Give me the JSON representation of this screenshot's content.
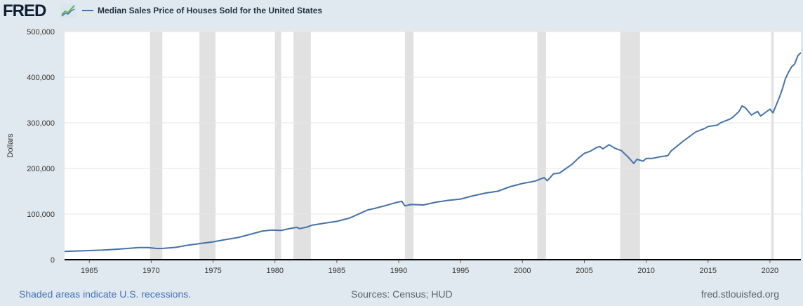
{
  "header": {
    "logo_text": "FRED",
    "logo_icon": "fred-chart-icon"
  },
  "footer": {
    "recession_note": "Shaded areas indicate U.S. recessions.",
    "sources": "Sources: Census; HUD",
    "site": "fred.stlouisfed.org"
  },
  "colors": {
    "line": "#4572a7",
    "recession": "#e1e1e1",
    "background": "#e1e9f0",
    "plot": "#ffffff",
    "grid": "#e6e6e6",
    "axis": "#000000"
  },
  "chart_data": {
    "type": "line",
    "title": "",
    "xlabel": "",
    "ylabel": "Dollars",
    "xlim": [
      1963.0,
      2022.5
    ],
    "ylim": [
      0,
      500000
    ],
    "grid": true,
    "legend_position": "top-left",
    "x_ticks": [
      "1965",
      "1970",
      "1975",
      "1980",
      "1985",
      "1990",
      "1995",
      "2000",
      "2005",
      "2010",
      "2015",
      "2020"
    ],
    "y_ticks": [
      "0",
      "100,000",
      "200,000",
      "300,000",
      "400,000",
      "500,000"
    ],
    "recessions": [
      [
        1969.9,
        1970.9
      ],
      [
        1973.9,
        1975.2
      ],
      [
        1980.0,
        1980.5
      ],
      [
        1981.5,
        1982.9
      ],
      [
        1990.5,
        1991.2
      ],
      [
        2001.2,
        2001.9
      ],
      [
        2007.9,
        2009.5
      ],
      [
        2020.1,
        2020.3
      ]
    ],
    "series": [
      {
        "name": "Median Sales Price of Houses Sold for the United States",
        "x": [
          1963.0,
          1964.0,
          1965.0,
          1966.0,
          1967.0,
          1968.0,
          1969.0,
          1969.75,
          1970.5,
          1971.0,
          1972.0,
          1973.0,
          1974.0,
          1975.0,
          1976.0,
          1977.0,
          1978.0,
          1979.0,
          1979.75,
          1980.5,
          1981.0,
          1981.75,
          1982.0,
          1982.5,
          1983.0,
          1984.0,
          1985.0,
          1986.0,
          1987.0,
          1987.5,
          1988.0,
          1989.0,
          1989.75,
          1990.25,
          1990.5,
          1991.0,
          1992.0,
          1993.0,
          1994.0,
          1995.0,
          1996.0,
          1997.0,
          1998.0,
          1999.0,
          2000.0,
          2001.0,
          2001.75,
          2002.0,
          2002.5,
          2003.0,
          2004.0,
          2004.5,
          2005.0,
          2005.5,
          2006.0,
          2006.25,
          2006.5,
          2007.0,
          2007.5,
          2008.0,
          2008.5,
          2009.0,
          2009.25,
          2009.75,
          2010.0,
          2010.5,
          2011.0,
          2011.75,
          2012.0,
          2013.0,
          2014.0,
          2014.75,
          2015.0,
          2015.75,
          2016.0,
          2016.75,
          2017.0,
          2017.5,
          2017.75,
          2018.0,
          2018.5,
          2019.0,
          2019.25,
          2019.5,
          2020.0,
          2020.25,
          2020.75,
          2021.0,
          2021.25,
          2021.5,
          2021.75,
          2022.0,
          2022.25,
          2022.5
        ],
        "values": [
          18000,
          19000,
          20000,
          21000,
          22500,
          24500,
          26500,
          26500,
          24500,
          24800,
          27000,
          32000,
          35500,
          39000,
          44000,
          48500,
          55500,
          63000,
          65000,
          64000,
          67000,
          71000,
          68000,
          71000,
          75500,
          80000,
          84000,
          91000,
          103000,
          109000,
          112000,
          119000,
          125000,
          128000,
          118000,
          121000,
          120000,
          126000,
          130000,
          133000,
          140000,
          146000,
          150000,
          160000,
          167000,
          172000,
          180000,
          173000,
          188000,
          190000,
          209000,
          222000,
          233000,
          238000,
          246000,
          248000,
          243000,
          252000,
          244000,
          239000,
          226000,
          211000,
          220000,
          216000,
          222000,
          222000,
          225000,
          228000,
          238000,
          260000,
          280000,
          288000,
          292000,
          295000,
          300000,
          308000,
          312000,
          325000,
          337000,
          333000,
          317000,
          325000,
          315000,
          320000,
          330000,
          322000,
          355000,
          374000,
          397000,
          411000,
          423000,
          429000,
          447000,
          454000
        ]
      }
    ]
  }
}
